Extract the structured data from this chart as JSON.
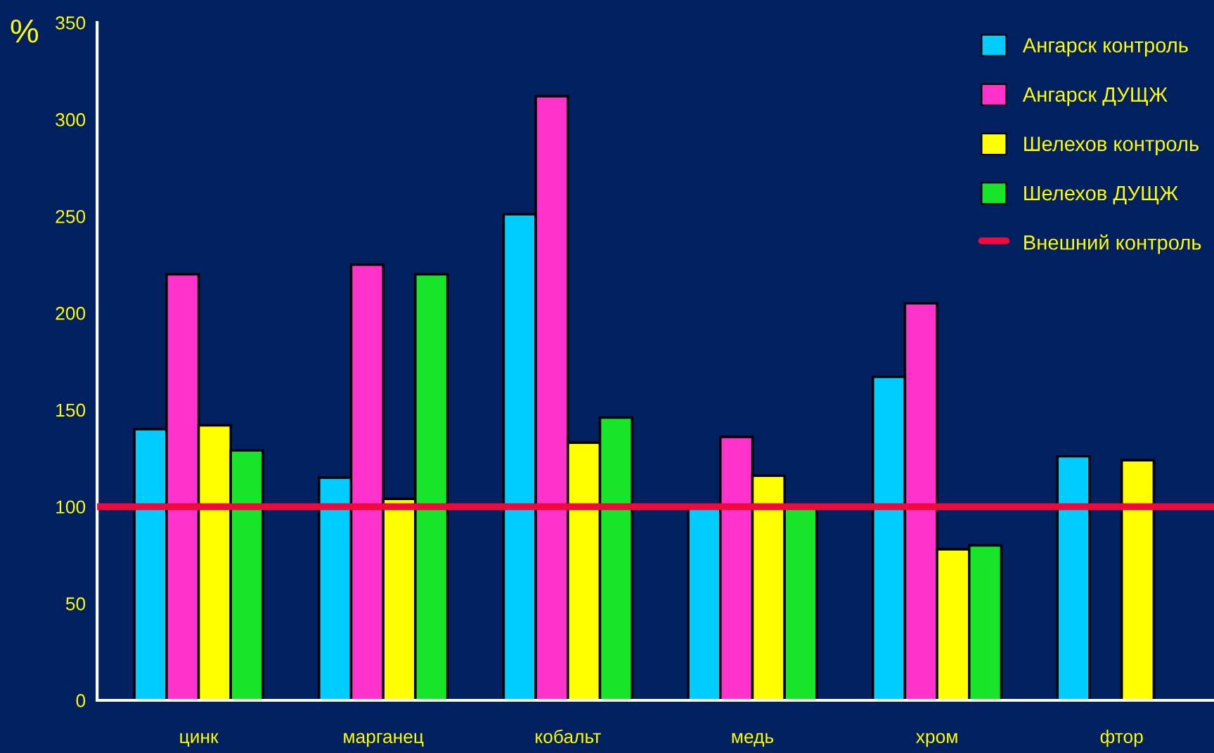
{
  "chart_data": {
    "type": "bar",
    "ylabel": "%",
    "categories": [
      "цинк",
      "марганец",
      "кобальт",
      "медь",
      "хром",
      "фтор"
    ],
    "series": [
      {
        "name": "Ангарск контроль",
        "color": "#00ccff",
        "values": [
          140,
          115,
          251,
          100,
          167,
          126
        ]
      },
      {
        "name": "Ангарск ДУЩЖ",
        "color": "#ff33cc",
        "values": [
          220,
          225,
          312,
          136,
          205,
          null
        ]
      },
      {
        "name": "Шелехов контроль",
        "color": "#ffff00",
        "values": [
          142,
          104,
          133,
          116,
          78,
          124
        ]
      },
      {
        "name": "Шелехов ДУЩЖ",
        "color": "#17e52a",
        "values": [
          129,
          220,
          146,
          100,
          80,
          null
        ]
      }
    ],
    "ref_lines": [
      {
        "axis": "y",
        "value": 100,
        "label": "Внешний контроль",
        "color": "#ee0a3c"
      }
    ],
    "ylim": [
      0,
      350
    ],
    "yticks": [
      0,
      50,
      100,
      150,
      200,
      250,
      300,
      350
    ],
    "grid": false,
    "legend": "top right"
  }
}
